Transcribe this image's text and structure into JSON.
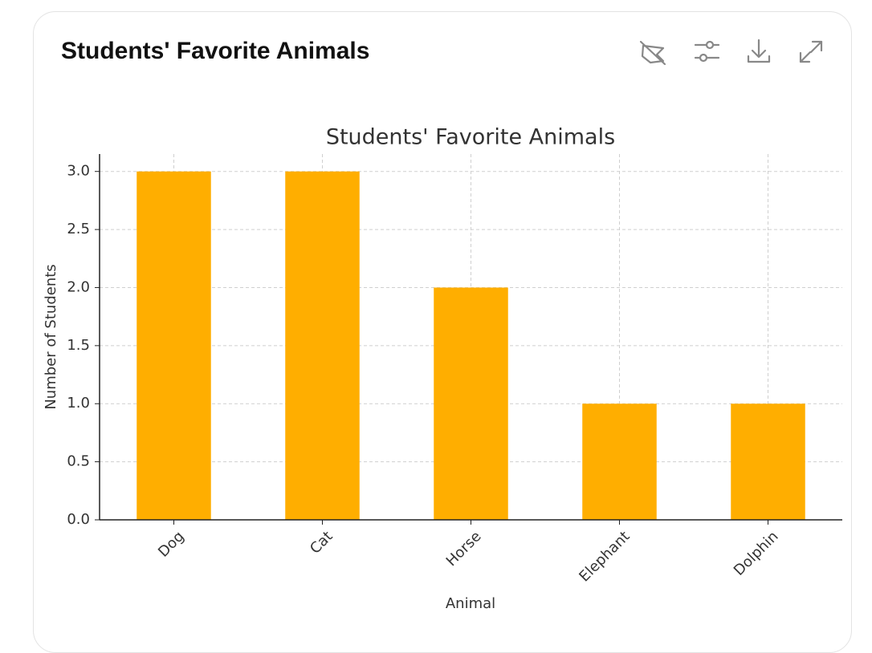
{
  "header": {
    "title": "Students' Favorite Animals"
  },
  "chart_data": {
    "type": "bar",
    "title": "Students' Favorite Animals",
    "categories": [
      "Dog",
      "Cat",
      "Horse",
      "Elephant",
      "Dolphin"
    ],
    "values": [
      3,
      3,
      2,
      1,
      1
    ],
    "color": "#ffae00",
    "xlabel": "Animal",
    "ylabel": "Number of Students",
    "ylim": [
      0,
      3.15
    ],
    "yticks": [
      {
        "value": 0,
        "label": "0.0"
      },
      0.5,
      {
        "value": 1,
        "label": "1.0"
      },
      1.5,
      {
        "value": 2,
        "label": "2.0"
      },
      2.5,
      {
        "value": 3,
        "label": "3.0"
      }
    ],
    "grid": true
  }
}
